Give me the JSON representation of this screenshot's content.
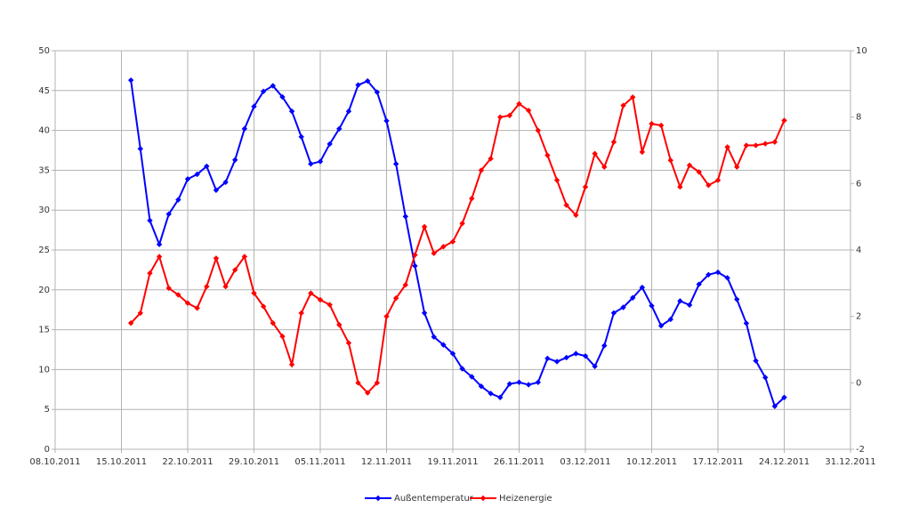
{
  "chart_data": {
    "type": "line",
    "x": [
      "16.10.2011",
      "17.10.2011",
      "18.10.2011",
      "19.10.2011",
      "20.10.2011",
      "21.10.2011",
      "22.10.2011",
      "23.10.2011",
      "24.10.2011",
      "25.10.2011",
      "26.10.2011",
      "27.10.2011",
      "28.10.2011",
      "29.10.2011",
      "30.10.2011",
      "31.10.2011",
      "01.11.2011",
      "02.11.2011",
      "03.11.2011",
      "04.11.2011",
      "05.11.2011",
      "06.11.2011",
      "07.11.2011",
      "08.11.2011",
      "09.11.2011",
      "10.11.2011",
      "11.11.2011",
      "12.11.2011",
      "13.11.2011",
      "14.11.2011",
      "15.11.2011",
      "16.11.2011",
      "17.11.2011",
      "18.11.2011",
      "19.11.2011",
      "20.11.2011",
      "21.11.2011",
      "22.11.2011",
      "23.11.2011",
      "24.11.2011",
      "25.11.2011",
      "26.11.2011",
      "27.11.2011",
      "28.11.2011",
      "29.11.2011",
      "30.11.2011",
      "01.12.2011",
      "02.12.2011",
      "03.12.2011",
      "04.12.2011",
      "05.12.2011",
      "06.12.2011",
      "07.12.2011",
      "08.12.2011",
      "09.12.2011",
      "10.12.2011",
      "11.12.2011",
      "12.12.2011",
      "13.12.2011",
      "14.12.2011",
      "15.12.2011",
      "16.12.2011",
      "17.12.2011",
      "18.12.2011",
      "19.12.2011",
      "20.12.2011",
      "21.12.2011",
      "22.12.2011",
      "23.12.2011",
      "24.12.2011"
    ],
    "xlim": [
      "08.10.2011",
      "31.12.2011"
    ],
    "xticks": [
      "08.10.2011",
      "15.10.2011",
      "22.10.2011",
      "29.10.2011",
      "05.11.2011",
      "12.11.2011",
      "19.11.2011",
      "26.11.2011",
      "03.12.2011",
      "10.12.2011",
      "17.12.2011",
      "24.12.2011",
      "31.12.2011"
    ],
    "ylim": [
      0,
      50
    ],
    "yticks": [
      0,
      5,
      10,
      15,
      20,
      25,
      30,
      35,
      40,
      45,
      50
    ],
    "y2lim": [
      -2,
      10
    ],
    "y2ticks": [
      -2,
      0,
      2,
      4,
      6,
      8,
      10
    ],
    "grid": true,
    "legend": "bottom",
    "series": [
      {
        "name": "Außentemperatur",
        "color": "#0000ff",
        "values": [
          46.3,
          37.7,
          28.7,
          25.7,
          29.5,
          31.3,
          33.9,
          34.5,
          35.5,
          32.5,
          33.5,
          36.3,
          40.2,
          43.0,
          44.9,
          45.6,
          44.2,
          42.4,
          39.2,
          35.8,
          36.1,
          38.3,
          40.2,
          42.4,
          45.7,
          46.2,
          44.8,
          41.2,
          35.8,
          29.2,
          23.0,
          17.1,
          14.1,
          13.1,
          12.0,
          10.1,
          9.1,
          7.9,
          7.0,
          6.5,
          8.2,
          8.4,
          8.1,
          8.4,
          11.4,
          11.0,
          11.5,
          12.0,
          11.7,
          10.4,
          13.0,
          17.1,
          17.8,
          19.0,
          20.3,
          18.0,
          15.5,
          16.3,
          18.6,
          18.1,
          20.7,
          21.9,
          22.2,
          21.5,
          18.8,
          15.8,
          11.1,
          9.0,
          5.4,
          6.5
        ]
      },
      {
        "name": "Heizenergie",
        "color": "#ff0000",
        "axis": "y2",
        "values": [
          1.8,
          2.1,
          3.3,
          3.8,
          2.85,
          2.65,
          2.4,
          2.25,
          2.9,
          3.75,
          2.9,
          3.4,
          3.8,
          2.7,
          2.3,
          1.8,
          1.4,
          0.55,
          2.1,
          2.7,
          2.5,
          2.35,
          1.75,
          1.2,
          0.0,
          -0.3,
          0.0,
          2.0,
          2.55,
          2.95,
          3.85,
          4.7,
          3.9,
          4.1,
          4.25,
          4.8,
          5.55,
          6.4,
          6.75,
          8.0,
          8.05,
          8.4,
          8.2,
          7.6,
          6.85,
          6.1,
          5.35,
          5.05,
          5.9,
          6.9,
          6.5,
          7.25,
          8.35,
          8.6,
          6.95,
          7.8,
          7.75,
          6.7,
          5.9,
          6.55,
          6.35,
          5.95,
          6.1,
          7.1,
          6.5,
          7.15,
          7.15,
          7.2,
          7.25,
          7.9
        ]
      }
    ]
  }
}
